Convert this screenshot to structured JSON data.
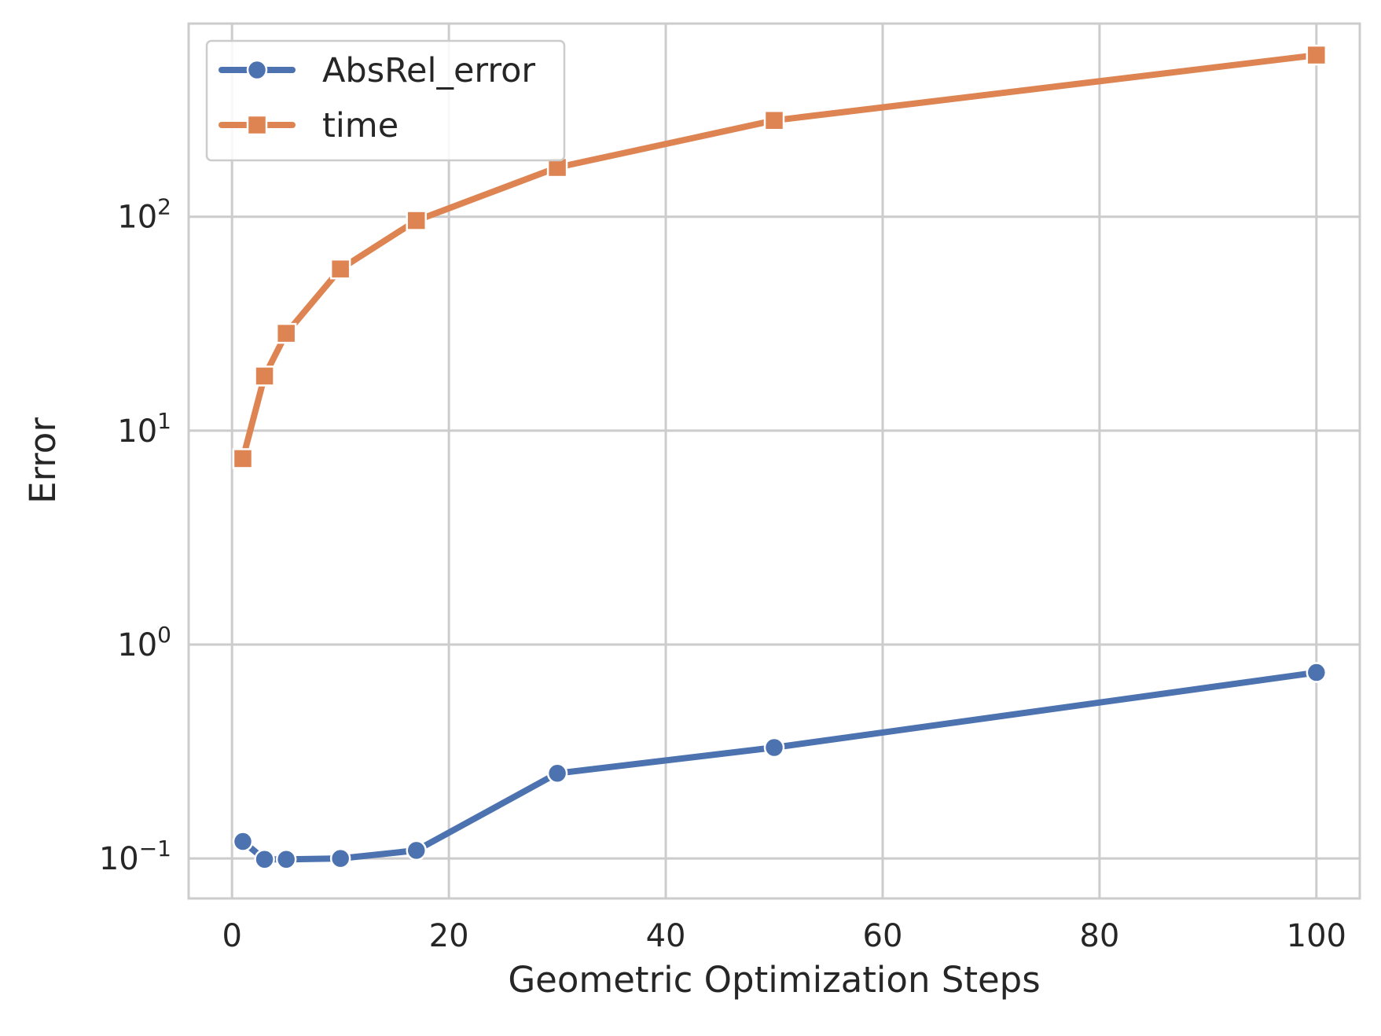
{
  "chart_data": {
    "type": "line",
    "title": "",
    "xlabel": "Geometric Optimization Steps",
    "ylabel": "Error",
    "yscale": "log",
    "xlim": [
      -4,
      104
    ],
    "ylim": [
      0.065,
      800
    ],
    "grid": true,
    "legend_position": "top-left",
    "x_ticks": [
      {
        "value": 0,
        "label": "0"
      },
      {
        "value": 20,
        "label": "20"
      },
      {
        "value": 40,
        "label": "40"
      },
      {
        "value": 60,
        "label": "60"
      },
      {
        "value": 80,
        "label": "80"
      },
      {
        "value": 100,
        "label": "100"
      }
    ],
    "y_ticks": [
      {
        "value": 0.1,
        "base": "10",
        "exp": "−1"
      },
      {
        "value": 1,
        "base": "10",
        "exp": "0"
      },
      {
        "value": 10,
        "base": "10",
        "exp": "1"
      },
      {
        "value": 100,
        "base": "10",
        "exp": "2"
      }
    ],
    "series": [
      {
        "name": "AbsRel_error",
        "color": "#4c72b0",
        "marker": "circle",
        "x": [
          1,
          3,
          5,
          10,
          17,
          30,
          50,
          100
        ],
        "y": [
          0.12,
          0.099,
          0.099,
          0.1,
          0.109,
          0.25,
          0.33,
          0.74
        ]
      },
      {
        "name": "time",
        "color": "#dd8452",
        "marker": "square",
        "x": [
          1,
          3,
          5,
          10,
          17,
          30,
          50,
          100
        ],
        "y": [
          7.4,
          18,
          28.5,
          57,
          96,
          170,
          282,
          570
        ]
      }
    ]
  }
}
